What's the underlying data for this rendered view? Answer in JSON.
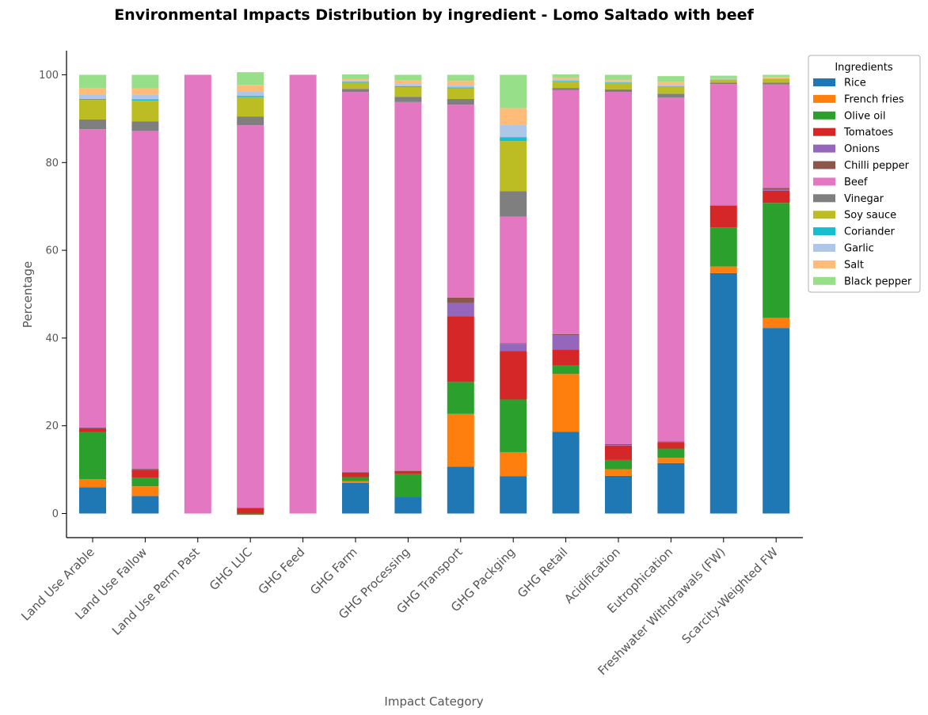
{
  "chart_data": {
    "type": "bar",
    "stacked": true,
    "title": "Environmental Impacts Distribution by ingredient - Lomo Saltado with beef",
    "xlabel": "Impact Category",
    "ylabel": "Percentage",
    "ylim": [
      -5.5,
      105.5
    ],
    "yticks": [
      0,
      20,
      40,
      60,
      80,
      100
    ],
    "grid": false,
    "legend": {
      "title": "Ingredients",
      "placement": "right, outside top"
    },
    "categories": [
      "Land Use Arable",
      "Land Use Fallow",
      "Land Use Perm Past",
      "GHG LUC",
      "GHG Feed",
      "GHG Farm",
      "GHG Processing",
      "GHG Transport",
      "GHG Packging",
      "GHG Retail",
      "Acidification",
      "Eutrophication",
      "Freshwater Withdrawals (FW)",
      "Scarcity-Weighted FW"
    ],
    "series": [
      {
        "name": "Rice",
        "color": "#1f77b4",
        "values": [
          6,
          4,
          0,
          0,
          0,
          7,
          3.8,
          10.7,
          8.5,
          18.6,
          8.6,
          11.5,
          54.8,
          42.3
        ]
      },
      {
        "name": "French fries",
        "color": "#ff7f0e",
        "values": [
          1.8,
          2.2,
          0,
          0,
          0,
          0.4,
          0,
          12,
          5.5,
          13.2,
          1.5,
          1.2,
          1.5,
          2.3
        ]
      },
      {
        "name": "Olive oil",
        "color": "#2ca02c",
        "values": [
          10.8,
          2,
          0,
          -0.3,
          0,
          0.9,
          5.2,
          7.3,
          12,
          1.9,
          2.1,
          2.1,
          8.9,
          26.2
        ]
      },
      {
        "name": "Tomatoes",
        "color": "#d62728",
        "values": [
          0.8,
          1.8,
          0,
          1.3,
          0,
          1,
          0.7,
          15,
          11,
          3.7,
          3.3,
          1.5,
          5,
          2.8
        ]
      },
      {
        "name": "Onions",
        "color": "#9467bd",
        "values": [
          0.1,
          0.1,
          0,
          0,
          0,
          0,
          0,
          3,
          1.7,
          3.3,
          0.1,
          0.1,
          0,
          0.2
        ]
      },
      {
        "name": "Chilli pepper",
        "color": "#8c564b",
        "values": [
          0.1,
          0.1,
          0,
          0,
          0,
          0.1,
          0.1,
          1.2,
          0.1,
          0.2,
          0.2,
          0.1,
          0,
          0.4
        ]
      },
      {
        "name": "Beef",
        "color": "#e377c2",
        "values": [
          68,
          77,
          100,
          87.2,
          100,
          86.7,
          84,
          44,
          28.9,
          55.6,
          80.3,
          78.3,
          27.7,
          23.6
        ]
      },
      {
        "name": "Vinegar",
        "color": "#7f7f7f",
        "values": [
          2.2,
          2.2,
          0,
          2,
          0,
          0.7,
          1.2,
          1.3,
          5.8,
          0.5,
          0.6,
          0.9,
          0.3,
          0.4
        ]
      },
      {
        "name": "Soy sauce",
        "color": "#bcbd22",
        "values": [
          4.5,
          4.7,
          0,
          4.4,
          0,
          1.4,
          2.2,
          2.4,
          11.4,
          1.4,
          1.4,
          1.6,
          0.7,
          0.9
        ]
      },
      {
        "name": "Coriander",
        "color": "#17becf",
        "values": [
          0.2,
          0.3,
          0,
          0.3,
          0,
          0.2,
          0.2,
          0.2,
          0.9,
          0.2,
          0.1,
          0.1,
          0,
          0
        ]
      },
      {
        "name": "Garlic",
        "color": "#aec7e8",
        "values": [
          1,
          1.1,
          0,
          1,
          0,
          0.3,
          0.5,
          0.6,
          2.8,
          0.3,
          0.3,
          0.4,
          0.1,
          0.1
        ]
      },
      {
        "name": "Salt",
        "color": "#ffbb78",
        "values": [
          1.5,
          1.4,
          0,
          1.5,
          0,
          0.4,
          0.8,
          0.9,
          3.8,
          0.4,
          0.4,
          0.6,
          0.2,
          0.3
        ]
      },
      {
        "name": "Black pepper",
        "color": "#98df8a",
        "values": [
          3,
          3.1,
          0,
          2.9,
          0,
          1,
          1.3,
          1.4,
          7.6,
          0.8,
          1.1,
          1.3,
          0.6,
          0.5
        ]
      }
    ]
  }
}
